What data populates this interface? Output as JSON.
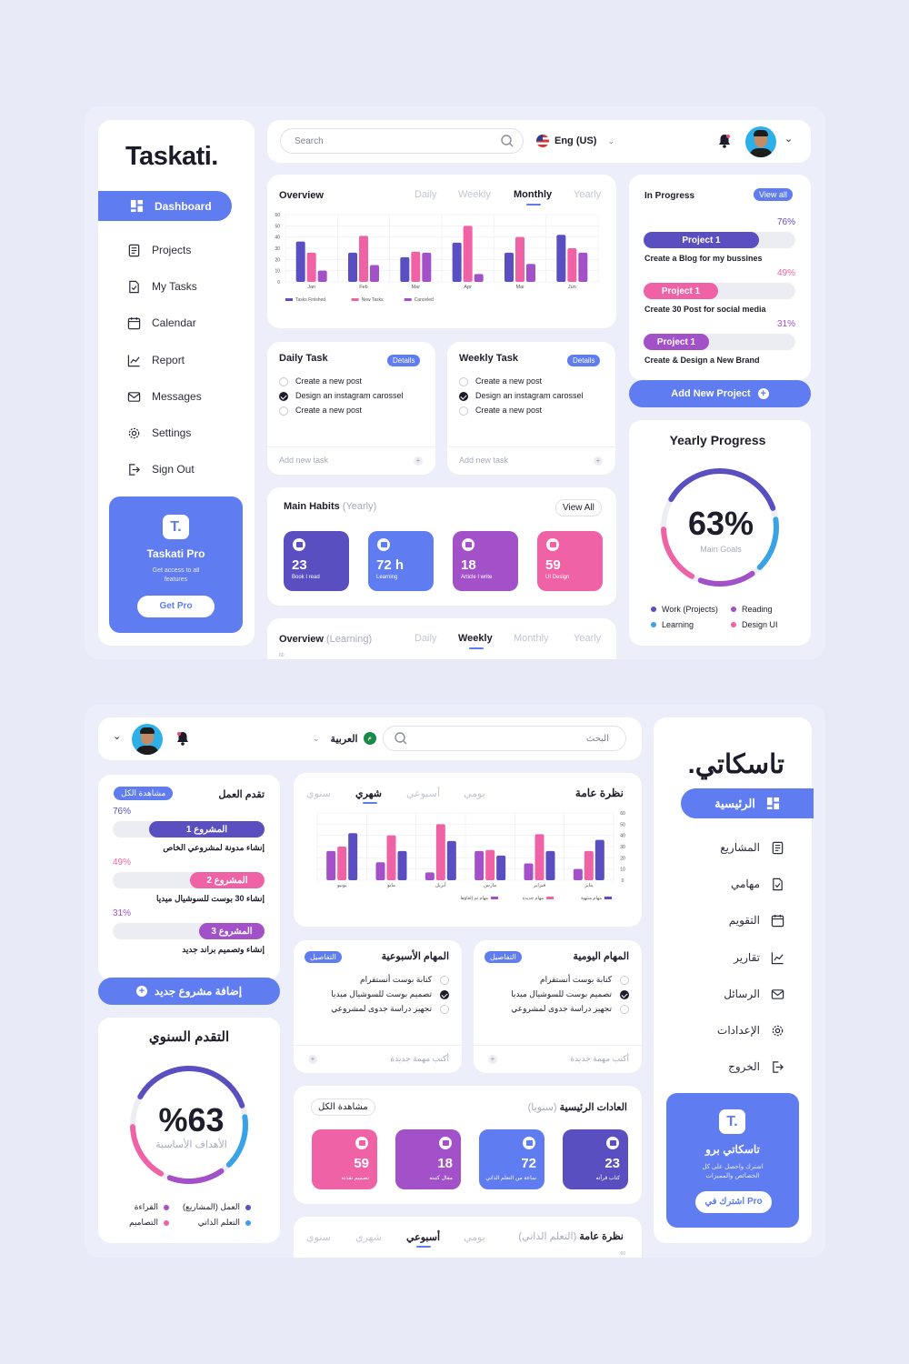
{
  "colors": {
    "accent": "#5f7cf0",
    "indigo": "#5a4fc0",
    "pink": "#f062a6",
    "purple": "#a251c8",
    "sky": "#3aa2e6"
  },
  "en": {
    "logo": "Taskati.",
    "nav": [
      {
        "label": "Dashboard",
        "icon": "dashboard-icon"
      },
      {
        "label": "Projects",
        "icon": "document-icon"
      },
      {
        "label": "My Tasks",
        "icon": "task-icon"
      },
      {
        "label": "Calendar",
        "icon": "calendar-icon"
      },
      {
        "label": "Report",
        "icon": "chart-icon"
      },
      {
        "label": "Messages",
        "icon": "mail-icon"
      },
      {
        "label": "Settings",
        "icon": "gear-icon"
      },
      {
        "label": "Sign Out",
        "icon": "logout-icon"
      }
    ],
    "promo": {
      "logo": "T.",
      "title": "Taskati Pro",
      "text": "Get access to all features",
      "button": "Get Pro"
    },
    "search_placeholder": "Search",
    "language": "Eng (US)",
    "overview": {
      "title": "Overview",
      "tabs": [
        "Daily",
        "Weekly",
        "Monthly",
        "Yearly"
      ],
      "active": "Monthly"
    },
    "daily": {
      "title": "Daily Task",
      "badge": "Details",
      "tasks": [
        {
          "text": "Create a new post",
          "done": false
        },
        {
          "text": "Design an instagram carossel",
          "done": true
        },
        {
          "text": "Create a new post",
          "done": false
        }
      ],
      "add": "Add new task"
    },
    "weekly": {
      "title": "Weekly Task",
      "badge": "Details",
      "tasks": [
        {
          "text": "Create a new post",
          "done": false
        },
        {
          "text": "Design an instagram carossel",
          "done": true
        },
        {
          "text": "Create a new post",
          "done": false
        }
      ],
      "add": "Add new task"
    },
    "habits": {
      "title": "Main Habits",
      "sub": "(Yearly)",
      "view": "View All",
      "items": [
        {
          "value": "23",
          "label": "Book I read",
          "color": "#5a4fc0"
        },
        {
          "value": "72 h",
          "label": "Learning",
          "color": "#5f7cf0"
        },
        {
          "value": "18",
          "label": "Article I write",
          "color": "#a251c8"
        },
        {
          "value": "59",
          "label": "UI Design",
          "color": "#f062a6"
        }
      ]
    },
    "overview2": {
      "title": "Overview",
      "sub": "(Learning)",
      "tabs": [
        "Daily",
        "Weekly",
        "Monthly",
        "Yearly"
      ],
      "active": "Weekly",
      "tick": "60"
    },
    "progress": {
      "title": "In Progress",
      "view": "View all",
      "items": [
        {
          "pct": "76%",
          "value": 0.76,
          "name": "Project 1",
          "desc": "Create a Blog for my bussines",
          "color": "#5a4fc0"
        },
        {
          "pct": "49%",
          "value": 0.49,
          "name": "Project 1",
          "desc": "Create 30 Post for social media",
          "color": "#f062a6"
        },
        {
          "pct": "31%",
          "value": 0.31,
          "name": "Project 1",
          "desc": "Create & Design a New Brand",
          "color": "#a251c8"
        }
      ]
    },
    "add_project": "Add New Project",
    "yearly": {
      "title": "Yearly Progress",
      "pct": "63%",
      "sub": "Main Goals",
      "legend": [
        {
          "label": "Work (Projects)",
          "color": "#5a4fc0"
        },
        {
          "label": "Reading",
          "color": "#a251c8"
        },
        {
          "label": "Learning",
          "color": "#3aa2e6"
        },
        {
          "label": "Design UI",
          "color": "#f062a6"
        }
      ]
    }
  },
  "ar": {
    "logo": "تاسكاتي.",
    "nav": [
      {
        "label": "الرئيسية",
        "icon": "dashboard-icon"
      },
      {
        "label": "المشاريع",
        "icon": "document-icon"
      },
      {
        "label": "مهامي",
        "icon": "task-icon"
      },
      {
        "label": "التقويم",
        "icon": "calendar-icon"
      },
      {
        "label": "تقارير",
        "icon": "chart-icon"
      },
      {
        "label": "الرسائل",
        "icon": "mail-icon"
      },
      {
        "label": "الإعدادات",
        "icon": "gear-icon"
      },
      {
        "label": "الخروج",
        "icon": "logout-icon"
      }
    ],
    "promo": {
      "logo": "T.",
      "title": "تاسكاتي برو",
      "text": "اشترك واحصل على كل الخصائص والمميزات",
      "button": "اشترك في Pro"
    },
    "search_placeholder": "البحث",
    "language": "العربية",
    "overview": {
      "title": "نظرة عامة",
      "tabs": [
        "يومي",
        "أسبوعي",
        "شهري",
        "سنوي"
      ],
      "active": "شهري"
    },
    "daily": {
      "title": "المهام اليومية",
      "badge": "التفاصيل",
      "tasks": [
        {
          "text": "كتابة بوست أنستقرام",
          "done": false
        },
        {
          "text": "تصميم بوست للسوشيال ميديا",
          "done": true
        },
        {
          "text": "تجهيز دراسة جدوى لمشروعي",
          "done": false
        }
      ],
      "add": "أكتب مهمة جديدة"
    },
    "weekly": {
      "title": "المهام الأسبوعية",
      "badge": "التفاصيل",
      "tasks": [
        {
          "text": "كتابة بوست أنستقرام",
          "done": false
        },
        {
          "text": "تصميم بوست للسوشيال ميديا",
          "done": true
        },
        {
          "text": "تجهيز دراسة جدوى لمشروعي",
          "done": false
        }
      ],
      "add": "أكتب مهمة جديدة"
    },
    "habits": {
      "title": "العادات الرئيسية",
      "sub": "(سنويا)",
      "view": "مشاهدة الكل",
      "items": [
        {
          "value": "23",
          "label": "كتاب قرأته",
          "color": "#5a4fc0"
        },
        {
          "value": "72",
          "label": "ساعة من التعلم الذاتي",
          "color": "#5f7cf0"
        },
        {
          "value": "18",
          "label": "مقال كتبته",
          "color": "#a251c8"
        },
        {
          "value": "59",
          "label": "تصميم نفذته",
          "color": "#f062a6"
        }
      ]
    },
    "overview2": {
      "title": "نظرة عامة",
      "sub": "(التعلم الذاتي)",
      "tabs": [
        "يومي",
        "أسبوعي",
        "شهري",
        "سنوي"
      ],
      "active": "أسبوعي",
      "tick": "60"
    },
    "progress": {
      "title": "تقدم العمل",
      "view": "مشاهدة الكل",
      "items": [
        {
          "pct": "76%",
          "value": 0.76,
          "name": "المشروع 1",
          "desc": "إنشاء مدونة لمشروعي الخاص",
          "color": "#5a4fc0"
        },
        {
          "pct": "49%",
          "value": 0.49,
          "name": "المشروع 2",
          "desc": "إنشاء 30 بوست للسوشيال ميديا",
          "color": "#f062a6"
        },
        {
          "pct": "31%",
          "value": 0.31,
          "name": "المشروع 3",
          "desc": "إنشاء وتصميم براند جديد",
          "color": "#a251c8"
        }
      ]
    },
    "add_project": "إضافة مشروع جديد",
    "yearly": {
      "title": "التقدم السنوي",
      "pct": "%63",
      "sub": "الأهداف الأساسية",
      "legend": [
        {
          "label": "العمل (المشاريع)",
          "color": "#5a4fc0"
        },
        {
          "label": "القراءة",
          "color": "#a251c8"
        },
        {
          "label": "التعلم الذاتي",
          "color": "#3aa2e6"
        },
        {
          "label": "التصاميم",
          "color": "#f062a6"
        }
      ]
    }
  },
  "chart_data": [
    {
      "type": "bar",
      "title": "Overview",
      "categories": [
        "Jan",
        "Feb",
        "Mar",
        "Apr",
        "Mai",
        "Jun"
      ],
      "ylim": [
        0,
        60
      ],
      "yticks": [
        "0",
        "10",
        "20",
        "30",
        "40",
        "50",
        "60"
      ],
      "series": [
        {
          "name": "Tasks Finished",
          "color": "#5a4fc0",
          "values": [
            36,
            26,
            22,
            35,
            26,
            42
          ]
        },
        {
          "name": "New Tasks",
          "color": "#f062a6",
          "values": [
            26,
            41,
            27,
            50,
            40,
            30
          ]
        },
        {
          "name": "Canceled",
          "color": "#a251c8",
          "values": [
            10,
            15,
            26,
            7,
            16,
            26
          ]
        }
      ]
    },
    {
      "type": "bar",
      "title": "نظرة عامة",
      "categories": [
        "يناير",
        "فبراير",
        "مارس",
        "أبريل",
        "مايو",
        "يونيو"
      ],
      "ylim": [
        0,
        60
      ],
      "yticks": [
        "0",
        "10",
        "20",
        "30",
        "40",
        "50",
        "60"
      ],
      "series": [
        {
          "name": "مهام منتهية",
          "color": "#5a4fc0",
          "values": [
            36,
            26,
            22,
            35,
            26,
            42
          ]
        },
        {
          "name": "مهام جديدة",
          "color": "#f062a6",
          "values": [
            26,
            41,
            27,
            50,
            40,
            30
          ]
        },
        {
          "name": "مهام تم إلغاؤها",
          "color": "#a251c8",
          "values": [
            10,
            15,
            26,
            7,
            16,
            26
          ]
        }
      ]
    }
  ]
}
